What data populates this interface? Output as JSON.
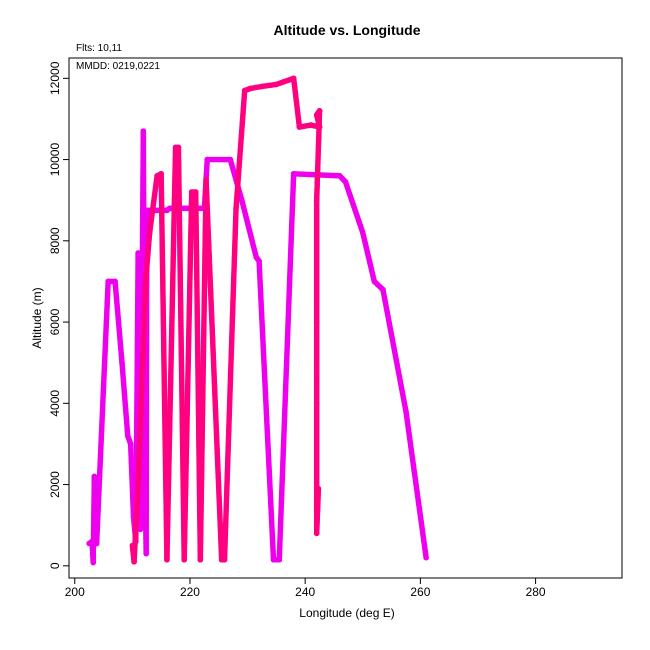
{
  "chart_data": {
    "type": "scatter",
    "title": "Altitude vs. Longitude",
    "xlabel": "Longitude (deg E)",
    "ylabel": "Altitude (m)",
    "annotations": {
      "flights": "Flts: 10,11",
      "mmdd": "MMDD: 0219,0221"
    },
    "xlim": [
      199,
      295
    ],
    "ylim": [
      -300,
      12500
    ],
    "x_ticks": [
      200,
      220,
      240,
      260,
      280
    ],
    "y_ticks": [
      0,
      2000,
      4000,
      6000,
      8000,
      10000,
      12000
    ],
    "grid": false,
    "series": [
      {
        "color": "#ee00ee",
        "points": [
          [
            202.5,
            550
          ],
          [
            203.0,
            600
          ],
          [
            203.2,
            80
          ],
          [
            203.4,
            2200
          ],
          [
            203.8,
            550
          ],
          [
            205.8,
            7000
          ],
          [
            207.0,
            7000
          ],
          [
            208.2,
            5000
          ],
          [
            209.2,
            3200
          ],
          [
            209.7,
            3000
          ],
          [
            210.2,
            1200
          ],
          [
            210.6,
            600
          ],
          [
            211.0,
            7700
          ],
          [
            211.4,
            900
          ],
          [
            211.9,
            10700
          ],
          [
            212.2,
            2200
          ],
          [
            212.4,
            300
          ],
          [
            212.5,
            8750
          ],
          [
            216.0,
            8750
          ],
          [
            216.5,
            8800
          ],
          [
            222.5,
            8800
          ],
          [
            223.0,
            10000
          ],
          [
            227.0,
            10000
          ],
          [
            229.0,
            9000
          ],
          [
            231.5,
            7600
          ],
          [
            232.0,
            7500
          ],
          [
            234.5,
            150
          ],
          [
            235.5,
            150
          ],
          [
            238.0,
            9650
          ],
          [
            246.0,
            9600
          ],
          [
            247.0,
            9450
          ],
          [
            250.0,
            8200
          ],
          [
            252.0,
            7000
          ],
          [
            253.5,
            6800
          ],
          [
            257.5,
            3800
          ],
          [
            261.0,
            200
          ]
        ]
      },
      {
        "color": "#ff0080",
        "points": [
          [
            210.0,
            500
          ],
          [
            210.3,
            100
          ],
          [
            211.0,
            2000
          ],
          [
            212.3,
            7000
          ],
          [
            213.0,
            8200
          ],
          [
            214.3,
            9600
          ],
          [
            215.0,
            9650
          ],
          [
            216.0,
            150
          ],
          [
            217.5,
            10300
          ],
          [
            218.0,
            10300
          ],
          [
            219.0,
            150
          ],
          [
            220.3,
            9200
          ],
          [
            221.0,
            9200
          ],
          [
            221.8,
            150
          ],
          [
            222.8,
            9500
          ],
          [
            225.5,
            150
          ],
          [
            226.0,
            150
          ],
          [
            228.0,
            8800
          ],
          [
            229.5,
            11700
          ],
          [
            230.5,
            11750
          ],
          [
            232.5,
            11800
          ],
          [
            235.0,
            11850
          ],
          [
            238.0,
            12000
          ],
          [
            239.0,
            10800
          ],
          [
            241.0,
            10850
          ],
          [
            242.5,
            10800
          ],
          [
            242.0,
            11100
          ],
          [
            242.5,
            11200
          ],
          [
            242.0,
            9000
          ],
          [
            242.0,
            6000
          ],
          [
            242.0,
            4000
          ],
          [
            242.0,
            800
          ],
          [
            242.3,
            1900
          ]
        ]
      }
    ]
  }
}
